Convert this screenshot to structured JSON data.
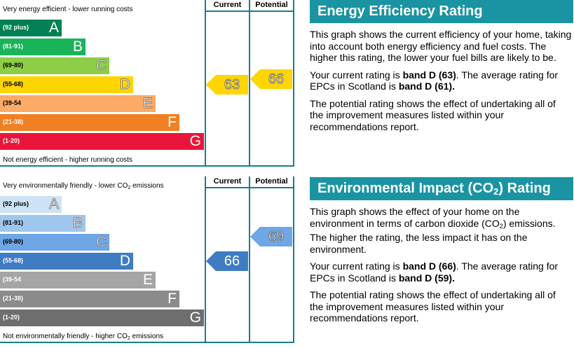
{
  "chart_data": [
    {
      "type": "bar",
      "id": "eer",
      "top_note": "Very energy efficient - lower running costs",
      "bottom_note": "Not energy efficient - higher running costs",
      "col_current": "Current",
      "col_potential": "Potential",
      "bands": [
        {
          "range": "(92 plus)",
          "letter": "A",
          "color": "#008054",
          "width": 88
        },
        {
          "range": "(81-91)",
          "letter": "B",
          "color": "#19b459",
          "width": 122
        },
        {
          "range": "(69-80)",
          "letter": "C",
          "color": "#8dce46",
          "width": 156
        },
        {
          "range": "(55-68)",
          "letter": "D",
          "color": "#ffd500",
          "width": 190
        },
        {
          "range": "(39-54",
          "letter": "E",
          "color": "#fcaa65",
          "width": 222
        },
        {
          "range": "(21-38)",
          "letter": "F",
          "color": "#ef8023",
          "width": 256
        },
        {
          "range": "(1-20)",
          "letter": "G",
          "color": "#e9153b",
          "width": 291
        }
      ],
      "current": {
        "value": "63",
        "band_index": 3,
        "color": "#ffd500"
      },
      "potential": {
        "value": "66",
        "band_index": 3,
        "color": "#ffd500"
      }
    },
    {
      "type": "bar",
      "id": "eir",
      "top_note_pre": "Very environmentally friendly - lower CO",
      "top_note_sub": "2",
      "top_note_post": " emissions",
      "bottom_note_pre": "Not environmentally friendly - higher CO",
      "bottom_note_sub": "2",
      "bottom_note_post": " emissions",
      "col_current": "Current",
      "col_potential": "Potential",
      "bands": [
        {
          "range": "(92 plus)",
          "letter": "A",
          "color": "#cde3f5",
          "width": 88
        },
        {
          "range": "(81-91)",
          "letter": "B",
          "color": "#9fc6ec",
          "width": 122
        },
        {
          "range": "(69-80)",
          "letter": "C",
          "color": "#6fa6e6",
          "width": 156
        },
        {
          "range": "(55-68)",
          "letter": "D",
          "color": "#3f7cc2",
          "width": 190
        },
        {
          "range": "(39-54",
          "letter": "E",
          "color": "#a5a5a5",
          "width": 222
        },
        {
          "range": "(21-38)",
          "letter": "F",
          "color": "#8b8b8b",
          "width": 256
        },
        {
          "range": "(1-20)",
          "letter": "G",
          "color": "#6e6e6e",
          "width": 291
        }
      ],
      "current": {
        "value": "66",
        "band_index": 3,
        "color": "#3f7cc2"
      },
      "potential": {
        "value": "69",
        "band_index": 2,
        "color": "#6fa6e6"
      }
    }
  ],
  "panels": {
    "eer": {
      "title": "Energy Efficiency Rating",
      "p1": "This graph shows the current efficiency of your home, taking into account both energy efficiency and fuel costs. The higher this rating, the lower your fuel bills are likely to be.",
      "p2_pre": "Your current rating is ",
      "p2_b1": "band D (63)",
      "p2_mid": ". The average rating for EPCs in Scotland is ",
      "p2_b2": "band D (61).",
      "p3": "The potential rating shows the effect of undertaking all of the improvement measures listed within your recommendations report."
    },
    "eir": {
      "title_pre": "Environmental Impact (CO",
      "title_sub": "2",
      "title_post": ") Rating",
      "p1_pre": "This graph shows the effect of your home on the environment in terms of carbon dioxide (CO",
      "p1_sub": "2",
      "p1_post": ") emissions. The higher the rating, the less impact it has on the environment.",
      "p2_pre": "Your current rating is ",
      "p2_b1": "band D (66)",
      "p2_mid": ". The average rating for EPCs in Scotland is ",
      "p2_b2": "band D (59).",
      "p3": "The potential rating shows the effect of undertaking all of the improvement measures listed within your recommendations report."
    }
  }
}
